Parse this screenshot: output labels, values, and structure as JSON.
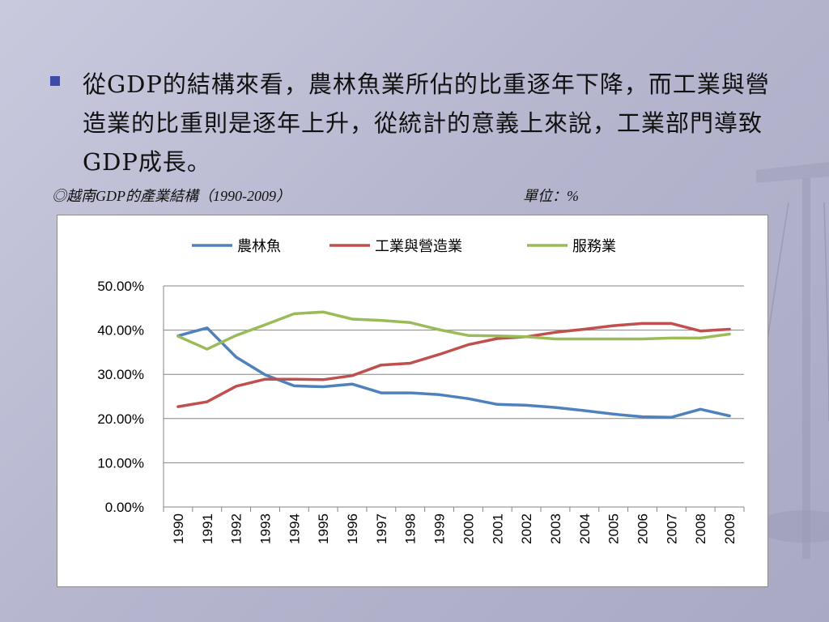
{
  "slide": {
    "bullet_text": "從GDP的結構來看，農林魚業所佔的比重逐年下降，而工業與營造業的比重則是逐年上升，從統計的意義上來說，工業部門導致GDP成長。",
    "subtitle": "◎越南GDP的產業結構（1990-2009）",
    "unit": "單位：%"
  },
  "chart_data": {
    "type": "line",
    "title": "",
    "xlabel": "",
    "ylabel": "",
    "ylim": [
      0,
      50
    ],
    "y_ticks": [
      "0.00%",
      "10.00%",
      "20.00%",
      "30.00%",
      "40.00%",
      "50.00%"
    ],
    "grid": true,
    "legend_position": "top",
    "x": [
      "1990",
      "1991",
      "1992",
      "1993",
      "1994",
      "1995",
      "1996",
      "1997",
      "1998",
      "1999",
      "2000",
      "2001",
      "2002",
      "2003",
      "2004",
      "2005",
      "2006",
      "2007",
      "2008",
      "2009"
    ],
    "series": [
      {
        "name": "農林魚",
        "color": "#4f81bd",
        "values": [
          38.7,
          40.5,
          33.9,
          29.9,
          27.4,
          27.2,
          27.8,
          25.8,
          25.8,
          25.4,
          24.5,
          23.2,
          23.0,
          22.5,
          21.8,
          21.0,
          20.4,
          20.3,
          22.1,
          20.6
        ]
      },
      {
        "name": "工業與營造業",
        "color": "#c0504d",
        "values": [
          22.7,
          23.8,
          27.3,
          28.9,
          28.9,
          28.8,
          29.7,
          32.1,
          32.5,
          34.5,
          36.7,
          38.1,
          38.5,
          39.5,
          40.2,
          41.0,
          41.5,
          41.5,
          39.8,
          40.2
        ]
      },
      {
        "name": "服務業",
        "color": "#9bbb59",
        "values": [
          38.6,
          35.7,
          38.8,
          41.2,
          43.7,
          44.1,
          42.5,
          42.2,
          41.7,
          40.1,
          38.8,
          38.7,
          38.5,
          38.0,
          38.0,
          38.0,
          38.0,
          38.2,
          38.2,
          39.1
        ]
      }
    ]
  }
}
